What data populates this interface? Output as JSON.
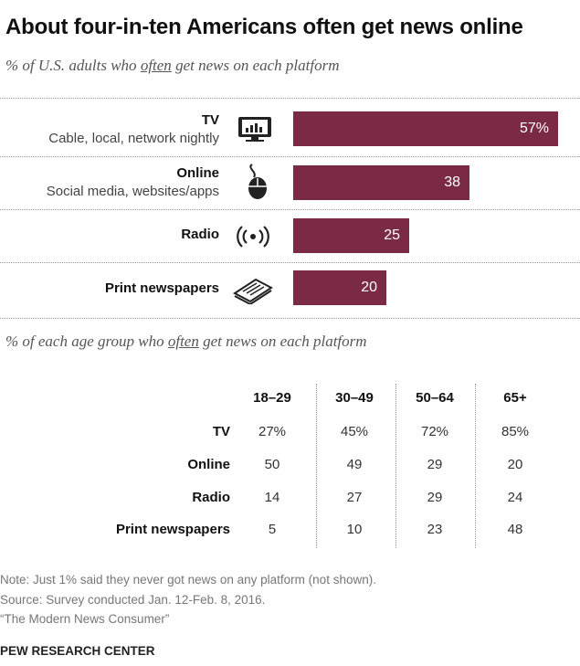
{
  "title": "About four-in-ten Americans often get news online",
  "subtitle_parts": [
    "% of U.S. adults who ",
    "often",
    " get news on each platform"
  ],
  "subtitle2_parts": [
    "% of each age group who ",
    "often",
    " get news on each platform"
  ],
  "colors": {
    "bar": "#7a2a45",
    "bar_text": "#ffffff"
  },
  "chart_data": [
    {
      "type": "bar",
      "orientation": "horizontal",
      "title": "% of U.S. adults who often get news on each platform",
      "categories": [
        {
          "label": "TV",
          "sublabel": "Cable, local, network nightly",
          "icon": "tv-icon"
        },
        {
          "label": "Online",
          "sublabel": "Social media, websites/apps",
          "icon": "mouse-icon"
        },
        {
          "label": "Radio",
          "sublabel": "",
          "icon": "radio-icon"
        },
        {
          "label": "Print newspapers",
          "sublabel": "",
          "icon": "newspaper-icon"
        }
      ],
      "values": [
        57,
        38,
        25,
        20
      ],
      "value_labels": [
        "57%",
        "38",
        "25",
        "20"
      ],
      "xlim": [
        0,
        60
      ]
    },
    {
      "type": "table",
      "title": "% of each age group who often get news on each platform",
      "columns": [
        "18–29",
        "30–49",
        "50–64",
        "65+"
      ],
      "rows": [
        {
          "label": "TV",
          "values": [
            "27%",
            "45%",
            "72%",
            "85%"
          ]
        },
        {
          "label": "Online",
          "values": [
            "50",
            "49",
            "29",
            "20"
          ]
        },
        {
          "label": "Radio",
          "values": [
            "14",
            "27",
            "29",
            "24"
          ]
        },
        {
          "label": "Print newspapers",
          "values": [
            "5",
            "10",
            "23",
            "48"
          ]
        }
      ]
    }
  ],
  "notes": [
    "Note: Just 1% said they never got news on any platform (not shown).",
    "Source: Survey conducted Jan. 12-Feb. 8, 2016.",
    "“The Modern News Consumer”"
  ],
  "brand": "PEW RESEARCH CENTER"
}
